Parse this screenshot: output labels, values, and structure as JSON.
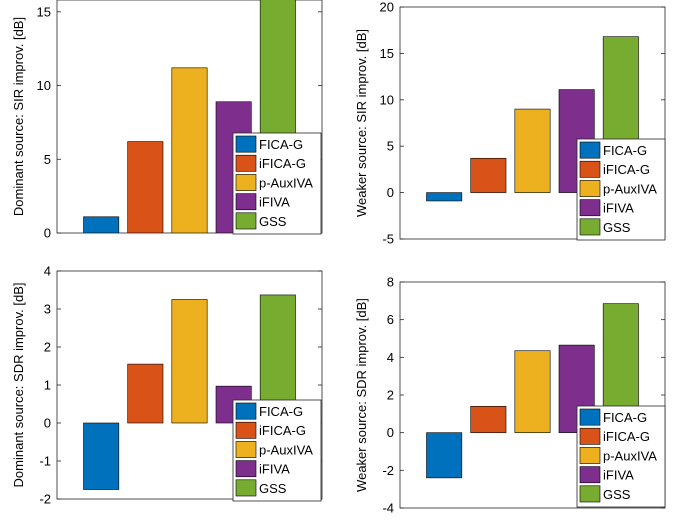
{
  "chart_data": [
    {
      "type": "bar",
      "ylabel": "Dominant source: SIR improv. [dB]",
      "ylim": [
        0,
        15.8
      ],
      "yticks": [
        0,
        5,
        10,
        15
      ],
      "categories": [
        "FICA-G",
        "iFICA-G",
        "p-AuxIVA",
        "iFIVA",
        "GSS"
      ],
      "values": [
        1.1,
        6.2,
        11.2,
        8.9,
        16.0
      ],
      "colors": [
        "#0072BD",
        "#D95319",
        "#EDB120",
        "#7E2F8E",
        "#77AC30"
      ],
      "legend": [
        "FICA-G",
        "iFICA-G",
        "p-AuxIVA",
        "iFIVA",
        "GSS"
      ]
    },
    {
      "type": "bar",
      "ylabel": "Weaker source: SIR improv. [dB]",
      "ylim": [
        -5,
        20
      ],
      "yticks": [
        -5,
        0,
        5,
        10,
        15,
        20
      ],
      "categories": [
        "FICA-G",
        "iFICA-G",
        "p-AuxIVA",
        "iFIVA",
        "GSS"
      ],
      "values": [
        -0.9,
        3.7,
        9.0,
        11.1,
        16.8
      ],
      "colors": [
        "#0072BD",
        "#D95319",
        "#EDB120",
        "#7E2F8E",
        "#77AC30"
      ],
      "legend": [
        "FICA-G",
        "iFICA-G",
        "p-AuxIVA",
        "iFIVA",
        "GSS"
      ]
    },
    {
      "type": "bar",
      "ylabel": "Dominant source: SDR improv. [dB]",
      "ylim": [
        -2,
        4
      ],
      "yticks": [
        -2,
        -1,
        0,
        1,
        2,
        3,
        4
      ],
      "categories": [
        "FICA-G",
        "iFICA-G",
        "p-AuxIVA",
        "iFIVA",
        "GSS"
      ],
      "values": [
        -1.75,
        1.55,
        3.25,
        0.97,
        3.37
      ],
      "colors": [
        "#0072BD",
        "#D95319",
        "#EDB120",
        "#7E2F8E",
        "#77AC30"
      ],
      "legend": [
        "FICA-G",
        "iFICA-G",
        "p-AuxIVA",
        "iFIVA",
        "GSS"
      ]
    },
    {
      "type": "bar",
      "ylabel": "Weaker source: SDR improv. [dB]",
      "ylim": [
        -4,
        8
      ],
      "yticks": [
        -4,
        -2,
        0,
        2,
        4,
        6,
        8
      ],
      "categories": [
        "FICA-G",
        "iFICA-G",
        "p-AuxIVA",
        "iFIVA",
        "GSS"
      ],
      "values": [
        -2.4,
        1.4,
        4.35,
        4.65,
        6.85
      ],
      "colors": [
        "#0072BD",
        "#D95319",
        "#EDB120",
        "#7E2F8E",
        "#77AC30"
      ],
      "legend": [
        "FICA-G",
        "iFICA-G",
        "p-AuxIVA",
        "iFIVA",
        "GSS"
      ]
    }
  ]
}
